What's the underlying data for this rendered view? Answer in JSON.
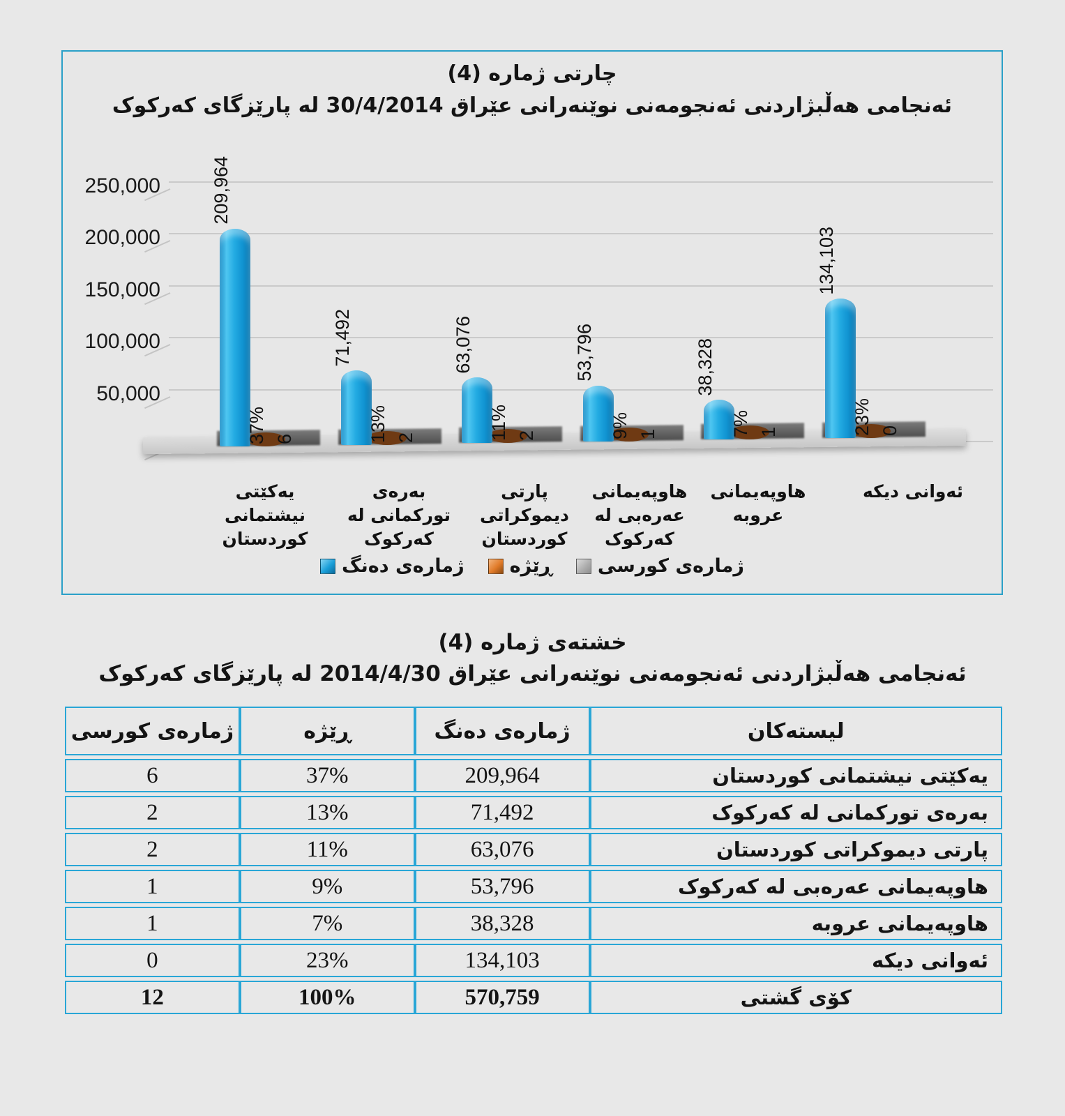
{
  "chart_data": {
    "type": "bar",
    "title": "چارتی ژماره (4)",
    "subtitle": "ئەنجامی هەڵبژاردنی ئەنجومەنی نوێنەرانی عێراق  30/4/2014 له پارێزگای کەرکوک",
    "categories": [
      "یەکێتی نیشتمانی کوردستان",
      "بەرەی تورکمانی له کەرکوک",
      "پارتی دیموکراتی کوردستان",
      "هاوپەیمانی عەرەبی له کەرکوک",
      "هاوپەیمانی عروبه",
      "ئەوانی دیکه"
    ],
    "series": [
      {
        "name": "ژمارەی دەنگ",
        "color": "#1b9fd8",
        "values": [
          209964,
          71492,
          63076,
          53796,
          38328,
          134103
        ],
        "labels": [
          "209,964",
          "71,492",
          "63,076",
          "53,796",
          "38,328",
          "134,103"
        ]
      },
      {
        "name": "ڕێژە",
        "color": "#e0802e",
        "values": [
          37,
          13,
          11,
          9,
          7,
          23
        ],
        "labels": [
          "37%",
          "13%",
          "11%",
          "9%",
          "7%",
          "23%"
        ]
      },
      {
        "name": "ژمارەی کورسی",
        "color": "#a8a8a8",
        "values": [
          6,
          2,
          2,
          1,
          1,
          0
        ],
        "labels": [
          "6",
          "2",
          "2",
          "1",
          "1",
          "0"
        ]
      }
    ],
    "ylim": [
      0,
      250000
    ],
    "y_ticks": [
      "0",
      "50,000",
      "100,000",
      "150,000",
      "200,000",
      "250,000"
    ],
    "grid": true,
    "legend_position": "bottom"
  },
  "table": {
    "title": "خشتەی ژماره (4)",
    "subtitle": "ئەنجامی هەڵبژاردنی ئەنجومەنی نوێنەرانی عێراق  2014/4/30 له پارێزگای کەرکوک",
    "headers": [
      "لیستەکان",
      "ژمارەی دەنگ",
      "ڕێژە",
      "ژمارەی کورسی"
    ],
    "rows": [
      {
        "list": "یەکێتی نیشتمانی کوردستان",
        "votes": "209,964",
        "pct": "37%",
        "seats": "6"
      },
      {
        "list": "بەرەی تورکمانی له کەرکوک",
        "votes": "71,492",
        "pct": "13%",
        "seats": "2"
      },
      {
        "list": "پارتی دیموکراتی کوردستان",
        "votes": "63,076",
        "pct": "11%",
        "seats": "2"
      },
      {
        "list": "هاوپەیمانی عەرەبی له کەرکوک",
        "votes": "53,796",
        "pct": "9%",
        "seats": "1"
      },
      {
        "list": "هاوپەیمانی عروبه",
        "votes": "38,328",
        "pct": "7%",
        "seats": "1"
      },
      {
        "list": "ئەوانی دیکه",
        "votes": "134,103",
        "pct": "23%",
        "seats": "0"
      }
    ],
    "total": {
      "list": "کۆی گشتی",
      "votes": "570,759",
      "pct": "100%",
      "seats": "12"
    }
  }
}
